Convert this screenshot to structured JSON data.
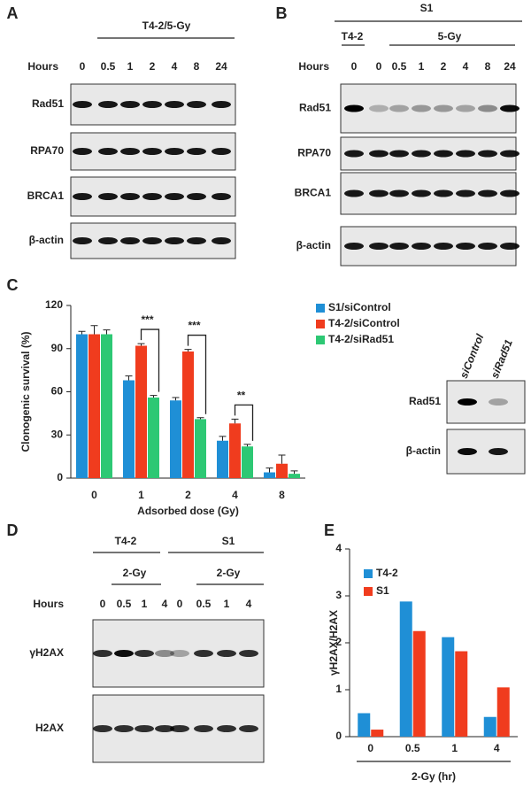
{
  "panels": {
    "a": "A",
    "b": "B",
    "c": "C",
    "d": "D",
    "e": "E"
  },
  "panel_a": {
    "treatment": "T4-2/5-Gy",
    "hours_label": "Hours",
    "hours": [
      "0",
      "0.5",
      "1",
      "2",
      "4",
      "8",
      "24"
    ],
    "blots": [
      "Rad51",
      "RPA70",
      "BRCA1",
      "β-actin"
    ]
  },
  "panel_b": {
    "cell_line": "S1",
    "control": "T4-2",
    "treatment": "5-Gy",
    "hours_label": "Hours",
    "hours": [
      "0",
      "0",
      "0.5",
      "1",
      "2",
      "4",
      "8",
      "24"
    ],
    "blots": [
      "Rad51",
      "RPA70",
      "BRCA1",
      "β-actin"
    ]
  },
  "panel_c_blot": {
    "lanes": [
      "siControl",
      "siRad51"
    ],
    "blots": [
      "Rad51",
      "β-actin"
    ]
  },
  "panel_d": {
    "hours_label": "Hours",
    "blots": [
      "γH2AX",
      "H2AX"
    ],
    "groups": [
      {
        "name": "T4-2",
        "treatment": "2-Gy",
        "hours": [
          "0",
          "0.5",
          "1",
          "4"
        ]
      },
      {
        "name": "S1",
        "treatment": "2-Gy",
        "hours": [
          "0",
          "0.5",
          "1",
          "4"
        ]
      }
    ]
  },
  "chart_data": [
    {
      "type": "bar",
      "ylabel": "Clonogenic survival (%)",
      "xlabel": "Adsorbed dose (Gy)",
      "categories": [
        "0",
        "1",
        "2",
        "4",
        "8"
      ],
      "series": [
        {
          "name": "S1/siControl",
          "color": "#1f8fd6",
          "values": [
            100,
            68,
            54,
            26,
            4
          ],
          "errors": [
            2,
            3,
            2,
            3,
            3
          ]
        },
        {
          "name": "T4-2/siControl",
          "color": "#f03c1e",
          "values": [
            100,
            92,
            88,
            38,
            10
          ],
          "errors": [
            6,
            1.5,
            1.5,
            3,
            6
          ]
        },
        {
          "name": "T4-2/siRad51",
          "color": "#2dc874",
          "values": [
            100,
            56,
            41,
            22,
            3
          ],
          "errors": [
            3,
            1.5,
            1,
            1.5,
            2
          ]
        }
      ],
      "annotations": [
        null,
        "***",
        "***",
        "**",
        null
      ],
      "ylim": [
        0,
        120
      ],
      "yticks": [
        0,
        30,
        60,
        90,
        120
      ],
      "grid": false
    },
    {
      "type": "bar",
      "ylabel": "γH2AX/H2AX",
      "xlabel": "2-Gy (hr)",
      "categories": [
        "0",
        "0.5",
        "1",
        "4"
      ],
      "series": [
        {
          "name": "T4-2",
          "color": "#1f8fd6",
          "values": [
            0.5,
            2.88,
            2.12,
            0.42
          ]
        },
        {
          "name": "S1",
          "color": "#f03c1e",
          "values": [
            0.15,
            2.25,
            1.82,
            1.05
          ]
        }
      ],
      "ylim": [
        0,
        4
      ],
      "yticks": [
        0,
        1,
        2,
        3,
        4
      ],
      "grid": false
    }
  ]
}
